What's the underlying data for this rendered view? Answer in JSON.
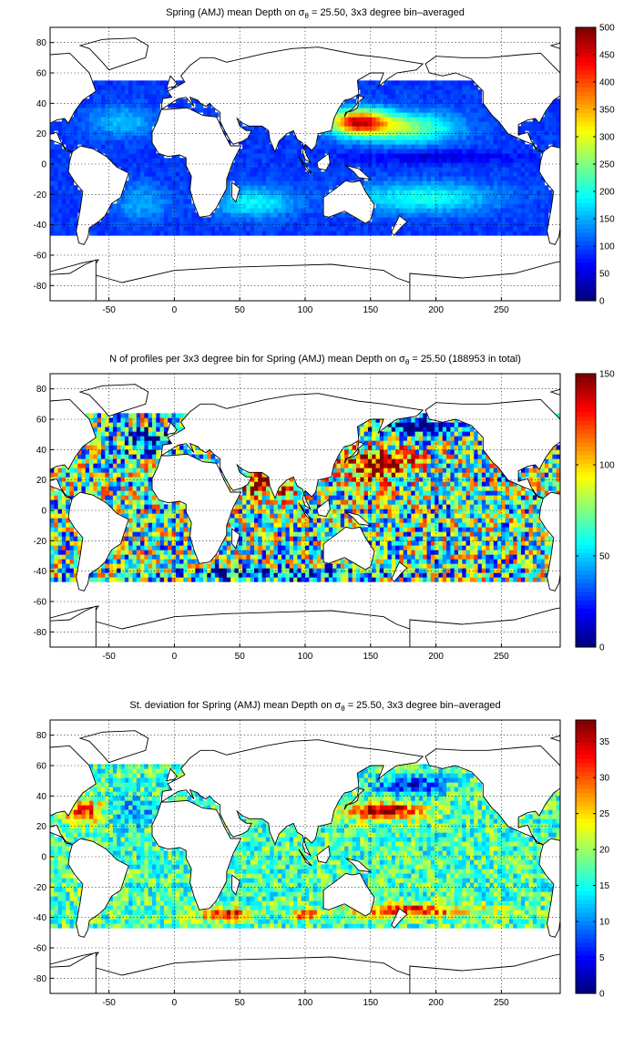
{
  "chart_data": [
    {
      "type": "heatmap",
      "title_pre": "Spring (AMJ) mean Depth on ",
      "title_sym": "σ",
      "title_sub": "θ",
      "title_post": " = 25.50, 3x3 degree bin–averaged",
      "xticks": [
        -50,
        0,
        50,
        100,
        150,
        200,
        250
      ],
      "yticks": [
        -80,
        -60,
        -40,
        -20,
        0,
        20,
        40,
        60,
        80
      ],
      "xlim": [
        -95,
        295
      ],
      "ylim": [
        -90,
        90
      ],
      "grid": true,
      "colorbar": {
        "ticks": [
          0,
          50,
          100,
          150,
          200,
          250,
          300,
          350,
          400,
          450,
          500
        ],
        "range": [
          0,
          500
        ],
        "colormap": "jet",
        "placement": "right"
      },
      "field": {
        "cell_degrees": 3,
        "lat_range": [
          -47,
          53
        ],
        "base": 90,
        "features": [
          {
            "lon": 140,
            "lat": 28,
            "rlon": 22,
            "rlat": 8,
            "amp": 320
          },
          {
            "lon": 175,
            "lat": 24,
            "rlon": 40,
            "rlat": 10,
            "amp": 170
          },
          {
            "lon": 190,
            "lat": -22,
            "rlon": 55,
            "rlat": 10,
            "amp": 110
          },
          {
            "lon": 60,
            "lat": -25,
            "rlon": 30,
            "rlat": 10,
            "amp": 100
          },
          {
            "lon": -25,
            "lat": -25,
            "rlon": 20,
            "rlat": 12,
            "amp": 60
          },
          {
            "lon": -40,
            "lat": 28,
            "rlon": 25,
            "rlat": 10,
            "amp": 70
          },
          {
            "lon": 200,
            "lat": 5,
            "rlon": 60,
            "rlat": 4,
            "amp": -50
          }
        ],
        "noise": 15
      }
    },
    {
      "type": "heatmap",
      "title_pre": "N of profiles per 3x3 degree bin for Spring (AMJ) mean Depth on ",
      "title_sym": "σ",
      "title_sub": "θ",
      "title_post": " = 25.50 (188953 in total)",
      "xticks": [
        -50,
        0,
        50,
        100,
        150,
        200,
        250
      ],
      "yticks": [
        -80,
        -60,
        -40,
        -20,
        0,
        20,
        40,
        60,
        80
      ],
      "xlim": [
        -95,
        295
      ],
      "ylim": [
        -90,
        90
      ],
      "grid": true,
      "colorbar": {
        "ticks": [
          0,
          50,
          100,
          150
        ],
        "range": [
          0,
          150
        ],
        "colormap": "jet",
        "placement": "right"
      },
      "field": {
        "cell_degrees": 3,
        "lat_range": [
          -47,
          62
        ],
        "base": 70,
        "features": [
          {
            "lon": 155,
            "lat": 30,
            "rlon": 25,
            "rlat": 10,
            "amp": 90
          },
          {
            "lon": 65,
            "lat": 18,
            "rlon": 10,
            "rlat": 8,
            "amp": 90
          },
          {
            "lon": 85,
            "lat": 15,
            "rlon": 8,
            "rlat": 7,
            "amp": 70
          },
          {
            "lon": 190,
            "lat": 55,
            "rlon": 35,
            "rlat": 6,
            "amp": -70
          },
          {
            "lon": -20,
            "lat": 45,
            "rlon": 20,
            "rlat": 8,
            "amp": -60
          },
          {
            "lon": 80,
            "lat": -42,
            "rlon": 80,
            "rlat": 4,
            "amp": -55
          }
        ],
        "noise": 55
      }
    },
    {
      "type": "heatmap",
      "title_pre": "St. deviation for Spring (AMJ) mean Depth on ",
      "title_sym": "σ",
      "title_sub": "θ",
      "title_post": " = 25.50, 3x3 degree bin–averaged",
      "xticks": [
        -50,
        0,
        50,
        100,
        150,
        200,
        250
      ],
      "yticks": [
        -80,
        -60,
        -40,
        -20,
        0,
        20,
        40,
        60,
        80
      ],
      "xlim": [
        -95,
        295
      ],
      "ylim": [
        -90,
        90
      ],
      "grid": true,
      "colorbar": {
        "ticks": [
          0,
          5,
          10,
          15,
          20,
          25,
          30,
          35
        ],
        "range": [
          0,
          38
        ],
        "colormap": "jet",
        "placement": "right"
      },
      "field": {
        "cell_degrees": 3,
        "lat_range": [
          -47,
          60
        ],
        "base": 17,
        "features": [
          {
            "lon": 160,
            "lat": 30,
            "rlon": 30,
            "rlat": 5,
            "amp": 22
          },
          {
            "lon": 180,
            "lat": 47,
            "rlon": 25,
            "rlat": 6,
            "amp": -12
          },
          {
            "lon": 180,
            "lat": -35,
            "rlon": 50,
            "rlat": 4,
            "amp": 15
          },
          {
            "lon": 40,
            "lat": -38,
            "rlon": 20,
            "rlat": 4,
            "amp": 18
          },
          {
            "lon": -70,
            "lat": 30,
            "rlon": 15,
            "rlat": 8,
            "amp": 15
          },
          {
            "lon": 100,
            "lat": -38,
            "rlon": 10,
            "rlat": 3,
            "amp": 15
          },
          {
            "lon": -30,
            "lat": 30,
            "rlon": 20,
            "rlat": 10,
            "amp": -5
          }
        ],
        "noise": 6
      }
    }
  ]
}
